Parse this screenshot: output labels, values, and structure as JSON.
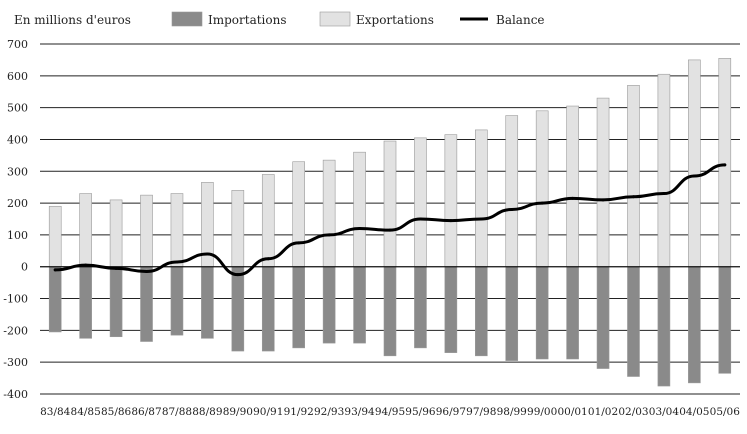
{
  "chart_data": {
    "type": "bar",
    "unit_label": "En millions d'euros",
    "categories": [
      "83/84",
      "84/85",
      "85/86",
      "86/87",
      "87/88",
      "88/89",
      "89/90",
      "90/91",
      "91/92",
      "92/93",
      "93/94",
      "94/95",
      "95/96",
      "96/97",
      "97/98",
      "98/99",
      "99/00",
      "00/01",
      "01/02",
      "02/03",
      "03/04",
      "04/05",
      "05/06"
    ],
    "series": [
      {
        "name": "Importations",
        "kind": "bar",
        "color": "#8a8a8a",
        "values": [
          -205,
          -225,
          -220,
          -235,
          -215,
          -225,
          -265,
          -265,
          -255,
          -240,
          -240,
          -280,
          -255,
          -270,
          -280,
          -295,
          -290,
          -290,
          -320,
          -345,
          -375,
          -365,
          -335
        ]
      },
      {
        "name": "Exportations",
        "kind": "bar",
        "color": "#e2e2e2",
        "values": [
          190,
          230,
          210,
          225,
          230,
          265,
          240,
          290,
          330,
          335,
          360,
          395,
          405,
          415,
          430,
          475,
          490,
          505,
          530,
          570,
          605,
          650,
          655
        ]
      },
      {
        "name": "Balance",
        "kind": "line",
        "color": "#000000",
        "values": [
          -10,
          5,
          -5,
          -15,
          15,
          40,
          -25,
          25,
          75,
          100,
          120,
          115,
          150,
          145,
          150,
          180,
          200,
          215,
          210,
          220,
          230,
          285,
          320
        ]
      }
    ],
    "ylim": [
      -400,
      700
    ],
    "yticks": [
      700,
      600,
      500,
      400,
      300,
      200,
      100,
      0,
      -100,
      -200,
      -300,
      -400
    ],
    "grid": true,
    "legend_position": "top"
  }
}
